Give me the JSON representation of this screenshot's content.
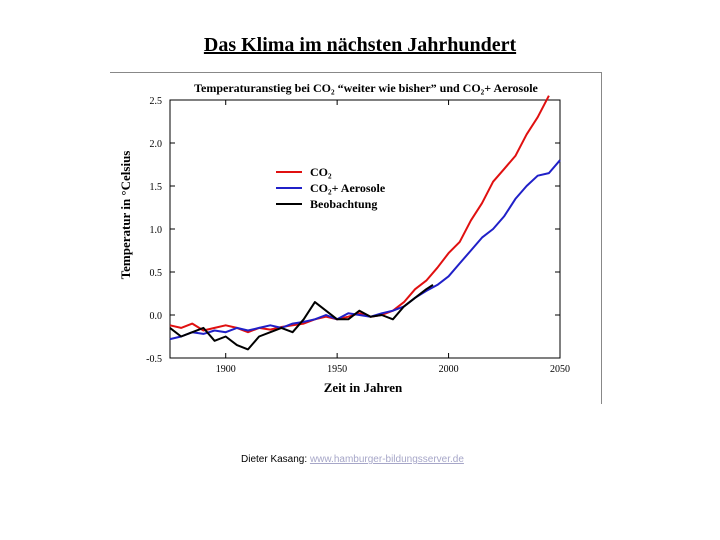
{
  "slide": {
    "title": "Das Klima im nächsten Jahrhundert",
    "credit_prefix": "Dieter Kasang: ",
    "credit_link": "www.hamburger-bildungsserver.de"
  },
  "chart_data": {
    "type": "line",
    "title": "Temperaturanstieg bei CO₂ “weiter wie bisher” und CO₂+ Aerosole",
    "xlabel": "Zeit in Jahren",
    "ylabel": "Temperatur in °Celsius",
    "xlim": [
      1875,
      2050
    ],
    "ylim": [
      -0.5,
      2.5
    ],
    "x_ticks": [
      1900,
      1950,
      2000,
      2050
    ],
    "y_ticks": [
      -0.5,
      0.0,
      0.5,
      1.0,
      1.5,
      2.0,
      2.5
    ],
    "x_tick_labels": [
      "1900",
      "1950",
      "2000",
      "2050"
    ],
    "y_tick_labels": [
      "-0.5",
      "0.0",
      "0.5",
      "1.0",
      "1.5",
      "2.0",
      "2.5"
    ],
    "grid": false,
    "legend_position": "upper-center",
    "series": [
      {
        "name": "CO₂",
        "color": "#e01010",
        "x": [
          1875,
          1880,
          1885,
          1890,
          1895,
          1900,
          1905,
          1910,
          1915,
          1920,
          1925,
          1930,
          1935,
          1940,
          1945,
          1950,
          1955,
          1960,
          1965,
          1970,
          1975,
          1980,
          1985,
          1990,
          1995,
          2000,
          2005,
          2010,
          2015,
          2020,
          2025,
          2030,
          2035,
          2040,
          2045
        ],
        "y": [
          -0.12,
          -0.15,
          -0.1,
          -0.18,
          -0.15,
          -0.12,
          -0.15,
          -0.2,
          -0.15,
          -0.17,
          -0.14,
          -0.12,
          -0.1,
          -0.05,
          -0.02,
          -0.05,
          -0.02,
          0.02,
          -0.02,
          0.0,
          0.05,
          0.15,
          0.3,
          0.4,
          0.55,
          0.72,
          0.85,
          1.1,
          1.3,
          1.55,
          1.7,
          1.85,
          2.1,
          2.3,
          2.55
        ]
      },
      {
        "name": "CO₂+ Aerosole",
        "color": "#2020c8",
        "x": [
          1875,
          1880,
          1885,
          1890,
          1895,
          1900,
          1905,
          1910,
          1915,
          1920,
          1925,
          1930,
          1935,
          1940,
          1945,
          1950,
          1955,
          1960,
          1965,
          1970,
          1975,
          1980,
          1985,
          1990,
          1995,
          2000,
          2005,
          2010,
          2015,
          2020,
          2025,
          2030,
          2035,
          2040,
          2045,
          2050
        ],
        "y": [
          -0.28,
          -0.25,
          -0.2,
          -0.22,
          -0.18,
          -0.2,
          -0.15,
          -0.18,
          -0.15,
          -0.12,
          -0.15,
          -0.1,
          -0.08,
          -0.05,
          0.0,
          -0.05,
          0.02,
          0.0,
          -0.02,
          0.02,
          0.05,
          0.1,
          0.2,
          0.28,
          0.35,
          0.45,
          0.6,
          0.75,
          0.9,
          1.0,
          1.15,
          1.35,
          1.5,
          1.62,
          1.65,
          1.8
        ]
      },
      {
        "name": "Beobachtung",
        "color": "#000000",
        "x": [
          1875,
          1880,
          1885,
          1890,
          1895,
          1900,
          1905,
          1910,
          1915,
          1920,
          1925,
          1930,
          1935,
          1940,
          1945,
          1950,
          1955,
          1960,
          1965,
          1970,
          1975,
          1980,
          1985,
          1990,
          1993
        ],
        "y": [
          -0.15,
          -0.25,
          -0.2,
          -0.15,
          -0.3,
          -0.25,
          -0.35,
          -0.4,
          -0.25,
          -0.2,
          -0.15,
          -0.2,
          -0.05,
          0.15,
          0.05,
          -0.05,
          -0.05,
          0.05,
          -0.02,
          0.0,
          -0.05,
          0.1,
          0.2,
          0.3,
          0.35
        ]
      }
    ]
  }
}
